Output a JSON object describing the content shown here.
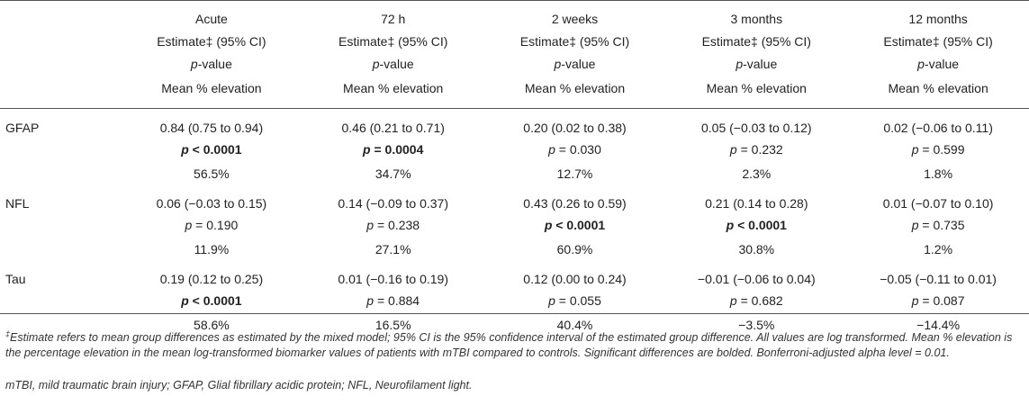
{
  "header": {
    "columns": [
      {
        "time": "Acute"
      },
      {
        "time": "72 h"
      },
      {
        "time": "2 weeks"
      },
      {
        "time": "3 months"
      },
      {
        "time": "12 months"
      }
    ],
    "estimate_label": "Estimate‡ (95% CI)",
    "pvalue_label_p": "p",
    "pvalue_label_rest": "-value",
    "mean_label": "Mean % elevation"
  },
  "rows": [
    {
      "label": "GFAP",
      "cells": [
        {
          "estimate": "0.84 (0.75 to 0.94)",
          "p_rel": "<",
          "p_val": "0.0001",
          "mean": "56.5%",
          "bold": true
        },
        {
          "estimate": "0.46 (0.21 to 0.71)",
          "p_rel": "=",
          "p_val": "0.0004",
          "mean": "34.7%",
          "bold": true
        },
        {
          "estimate": "0.20 (0.02 to 0.38)",
          "p_rel": "=",
          "p_val": "0.030",
          "mean": "12.7%",
          "bold": false
        },
        {
          "estimate": "0.05 (−0.03 to 0.12)",
          "p_rel": "=",
          "p_val": "0.232",
          "mean": "2.3%",
          "bold": false
        },
        {
          "estimate": "0.02 (−0.06 to 0.11)",
          "p_rel": "=",
          "p_val": "0.599",
          "mean": "1.8%",
          "bold": false
        }
      ]
    },
    {
      "label": "NFL",
      "cells": [
        {
          "estimate": "0.06 (−0.03 to 0.15)",
          "p_rel": "=",
          "p_val": "0.190",
          "mean": "11.9%",
          "bold": false
        },
        {
          "estimate": "0.14 (−0.09 to 0.37)",
          "p_rel": "=",
          "p_val": "0.238",
          "mean": "27.1%",
          "bold": false
        },
        {
          "estimate": "0.43 (0.26 to 0.59)",
          "p_rel": "<",
          "p_val": "0.0001",
          "mean": "60.9%",
          "bold": true
        },
        {
          "estimate": "0.21 (0.14 to 0.28)",
          "p_rel": "<",
          "p_val": "0.0001",
          "mean": "30.8%",
          "bold": true
        },
        {
          "estimate": "0.01 (−0.07 to 0.10)",
          "p_rel": "=",
          "p_val": "0.735",
          "mean": "1.2%",
          "bold": false
        }
      ]
    },
    {
      "label": "Tau",
      "cells": [
        {
          "estimate": "0.19 (0.12 to 0.25)",
          "p_rel": "<",
          "p_val": "0.0001",
          "mean": "58.6%",
          "bold": true
        },
        {
          "estimate": "0.01 (−0.16 to 0.19)",
          "p_rel": "=",
          "p_val": "0.884",
          "mean": "16.5%",
          "bold": false
        },
        {
          "estimate": "0.12 (0.00 to 0.24)",
          "p_rel": "=",
          "p_val": "0.055",
          "mean": "40.4%",
          "bold": false
        },
        {
          "estimate": "−0.01 (−0.06 to 0.04)",
          "p_rel": "=",
          "p_val": "0.682",
          "mean": "−3.5%",
          "bold": false
        },
        {
          "estimate": "−0.05 (−0.11 to 0.01)",
          "p_rel": "=",
          "p_val": "0.087",
          "mean": "−14.4%",
          "bold": false
        }
      ]
    }
  ],
  "footnotes": {
    "dagger": "‡",
    "note1": "Estimate refers to mean group differences as estimated by the mixed model; 95% CI is the 95% confidence interval of the estimated group difference. All values are log transformed. Mean % elevation is the percentage elevation in the mean log-transformed biomarker values of patients with mTBI compared to controls. Significant differences are bolded. Bonferroni-adjusted alpha level = 0.01.",
    "note2": "mTBI, mild traumatic brain injury; GFAP, Glial fibrillary acidic protein; NFL, Neurofilament light."
  }
}
